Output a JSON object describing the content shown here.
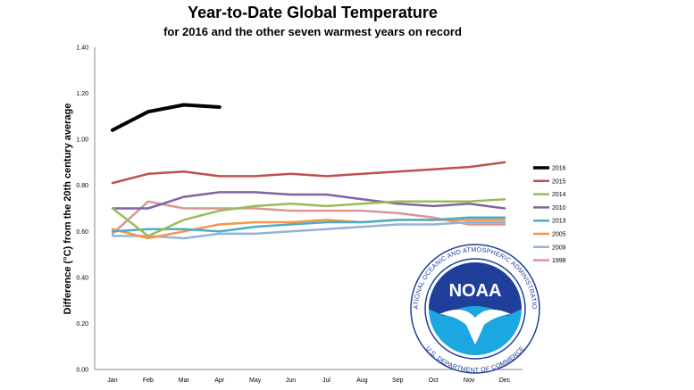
{
  "chart_data": {
    "type": "line",
    "title": "Year-to-Date Global Temperature",
    "subtitle": "for 2016 and the other seven warmest years on record",
    "xlabel": "",
    "ylabel": "Difference (°C) from the 20th century average",
    "categories": [
      "Jan",
      "Feb",
      "Mar",
      "Apr",
      "May",
      "Jun",
      "Jul",
      "Aug",
      "Sep",
      "Oct",
      "Nov",
      "Dec"
    ],
    "yticks": [
      "0.00",
      "0.20",
      "0.40",
      "0.60",
      "0.80",
      "1.00",
      "1.20",
      "1.40"
    ],
    "ylim": [
      0,
      1.4
    ],
    "grid": false,
    "legend_position": "right",
    "series": [
      {
        "name": "2016",
        "color": "#000000",
        "width": 4,
        "values": [
          1.04,
          1.12,
          1.15,
          1.14,
          null,
          null,
          null,
          null,
          null,
          null,
          null,
          null
        ]
      },
      {
        "name": "2015",
        "color": "#c0504d",
        "width": 2.5,
        "values": [
          0.81,
          0.85,
          0.86,
          0.84,
          0.84,
          0.85,
          0.84,
          0.85,
          0.86,
          0.87,
          0.88,
          0.9
        ]
      },
      {
        "name": "2014",
        "color": "#9bbb59",
        "width": 2.5,
        "values": [
          0.7,
          0.58,
          0.65,
          0.69,
          0.71,
          0.72,
          0.71,
          0.72,
          0.73,
          0.73,
          0.73,
          0.74
        ]
      },
      {
        "name": "2010",
        "color": "#8064a2",
        "width": 2.5,
        "values": [
          0.7,
          0.7,
          0.75,
          0.77,
          0.77,
          0.76,
          0.76,
          0.74,
          0.72,
          0.71,
          0.72,
          0.7
        ]
      },
      {
        "name": "2013",
        "color": "#4bacc6",
        "width": 2.5,
        "values": [
          0.6,
          0.61,
          0.61,
          0.6,
          0.62,
          0.63,
          0.64,
          0.64,
          0.65,
          0.65,
          0.66,
          0.66
        ]
      },
      {
        "name": "2005",
        "color": "#f79646",
        "width": 2.5,
        "values": [
          0.61,
          0.57,
          0.6,
          0.63,
          0.64,
          0.64,
          0.65,
          0.64,
          0.65,
          0.65,
          0.65,
          0.65
        ]
      },
      {
        "name": "2009",
        "color": "#95b3d7",
        "width": 2.5,
        "values": [
          0.58,
          0.58,
          0.57,
          0.59,
          0.59,
          0.6,
          0.61,
          0.62,
          0.63,
          0.63,
          0.64,
          0.64
        ]
      },
      {
        "name": "1998",
        "color": "#d99694",
        "width": 2.5,
        "values": [
          0.59,
          0.73,
          0.7,
          0.7,
          0.7,
          0.69,
          0.69,
          0.69,
          0.68,
          0.66,
          0.63,
          0.63
        ]
      }
    ]
  },
  "logo": {
    "word": "NOAA",
    "ring_top": "NATIONAL OCEANIC AND ATMOSPHERIC ADMINISTRATION",
    "ring_bottom": "U.S. DEPARTMENT OF COMMERCE",
    "colors": {
      "ring": "#1f3f9a",
      "sky": "#1f3f9a",
      "sea": "#1ba7e1",
      "bird": "#ffffff"
    }
  }
}
